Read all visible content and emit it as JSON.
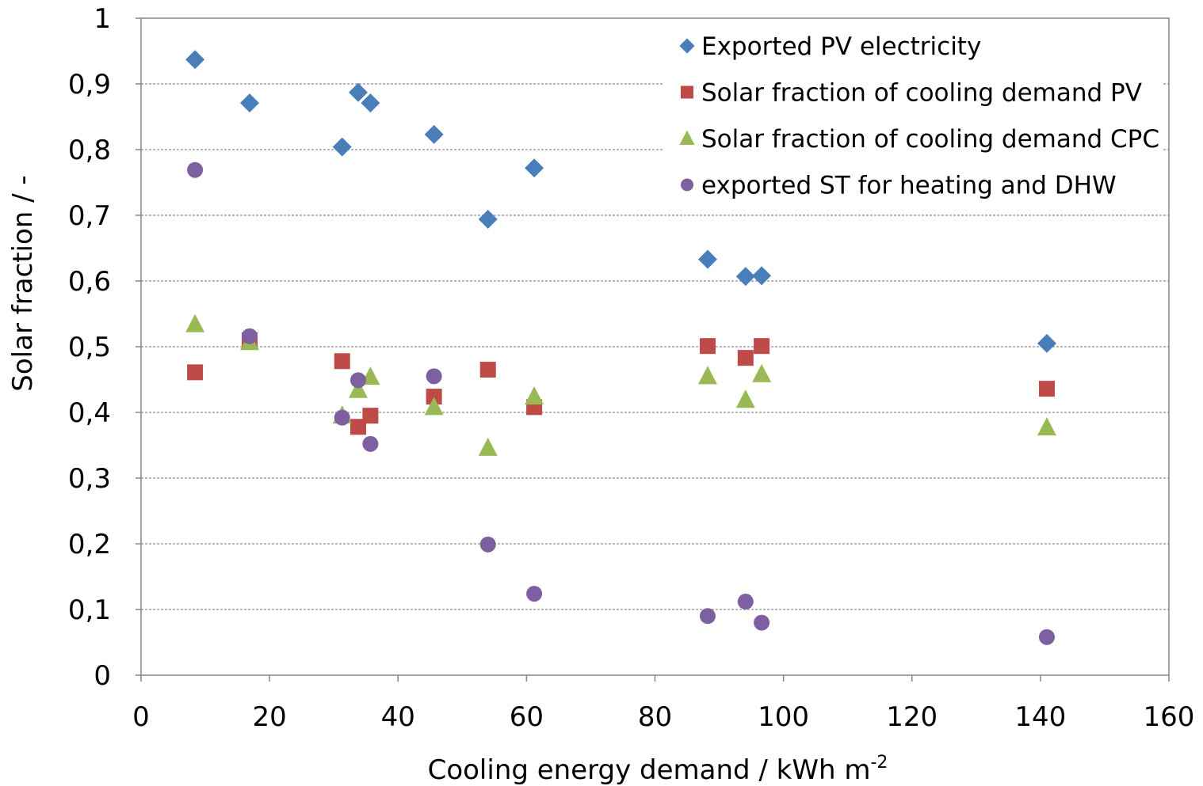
{
  "chart_data": {
    "type": "scatter",
    "x_label": {
      "text": "Cooling energy demand / kWh m",
      "superscript": "-2"
    },
    "y_label": "Solar fraction / -",
    "xlim": [
      0,
      160
    ],
    "ylim": [
      0,
      1
    ],
    "xticks": [
      0,
      20,
      40,
      60,
      80,
      100,
      120,
      140,
      160
    ],
    "yticks": [
      0,
      {
        "value": 0.1,
        "label": "0,1"
      },
      {
        "value": 0.2,
        "label": "0,2"
      },
      {
        "value": 0.3,
        "label": "0,3"
      },
      {
        "value": 0.4,
        "label": "0,4"
      },
      {
        "value": 0.5,
        "label": "0,5"
      },
      {
        "value": 0.6,
        "label": "0,6"
      },
      {
        "value": 0.7,
        "label": "0,7"
      },
      {
        "value": 0.8,
        "label": "0,8"
      },
      {
        "value": 0.9,
        "label": "0,9"
      },
      1
    ],
    "grid": true,
    "legend": "upper right",
    "x": [
      8.4,
      16.9,
      31.3,
      33.8,
      35.7,
      45.6,
      54.0,
      61.2,
      88.2,
      94.1,
      96.6,
      141.0
    ],
    "series": [
      {
        "name": "Exported PV electricity",
        "color": "#4a7ebb",
        "marker": "diamond",
        "values": [
          0.937,
          0.871,
          0.804,
          0.887,
          0.871,
          0.823,
          0.694,
          0.772,
          0.633,
          0.607,
          0.608,
          0.505
        ]
      },
      {
        "name": "Solar fraction of cooling demand PV",
        "color": "#be4b48",
        "marker": "square",
        "values": [
          0.461,
          0.51,
          0.478,
          0.378,
          0.395,
          0.424,
          0.465,
          0.408,
          0.501,
          0.483,
          0.501,
          0.436
        ]
      },
      {
        "name": "Solar fraction of cooling demand CPC",
        "color": "#98b954",
        "marker": "triangle",
        "values": [
          0.534,
          0.507,
          0.395,
          0.434,
          0.454,
          0.408,
          0.346,
          0.424,
          0.455,
          0.419,
          0.458,
          0.377
        ]
      },
      {
        "name": "exported ST for heating and DHW",
        "color": "#7d60a0",
        "marker": "circle",
        "values": [
          0.769,
          0.516,
          0.392,
          0.449,
          0.352,
          0.455,
          0.199,
          0.124,
          0.09,
          0.112,
          0.08,
          0.058
        ]
      }
    ]
  }
}
